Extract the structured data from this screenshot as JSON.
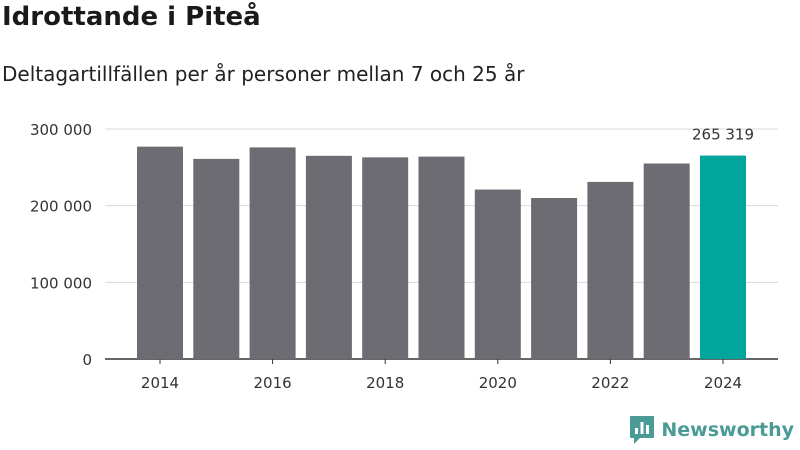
{
  "header": {
    "title": "Idrottande i Piteå",
    "subtitle": "Deltagartillfällen per år personer mellan 7 och 25 år"
  },
  "brand": {
    "name": "Newsworthy",
    "color": "#4a9a96",
    "icon": "newsworthy-logo-icon"
  },
  "colors": {
    "bar": "#6d6c72",
    "highlight": "#00a69c",
    "grid": "#d9d9d9",
    "axis": "#333333"
  },
  "chart_data": {
    "type": "bar",
    "title": "Idrottande i Piteå",
    "subtitle": "Deltagartillfällen per år personer mellan 7 och 25 år",
    "categories": [
      "2014",
      "2015",
      "2016",
      "2017",
      "2018",
      "2019",
      "2020",
      "2021",
      "2022",
      "2023",
      "2024"
    ],
    "values": [
      277000,
      261000,
      276000,
      265000,
      263000,
      264000,
      221000,
      210000,
      231000,
      255000,
      265319
    ],
    "x_tick_labels": [
      "2014",
      "2016",
      "2018",
      "2020",
      "2022",
      "2024"
    ],
    "y_ticks": [
      0,
      100000,
      200000,
      300000
    ],
    "y_tick_labels": [
      "0",
      "100 000",
      "200 000",
      "300 000"
    ],
    "ylim": [
      0,
      300000
    ],
    "highlight_index": 10,
    "data_label": "265 319",
    "xlabel": "",
    "ylabel": "",
    "grid": true,
    "legend": "none"
  }
}
